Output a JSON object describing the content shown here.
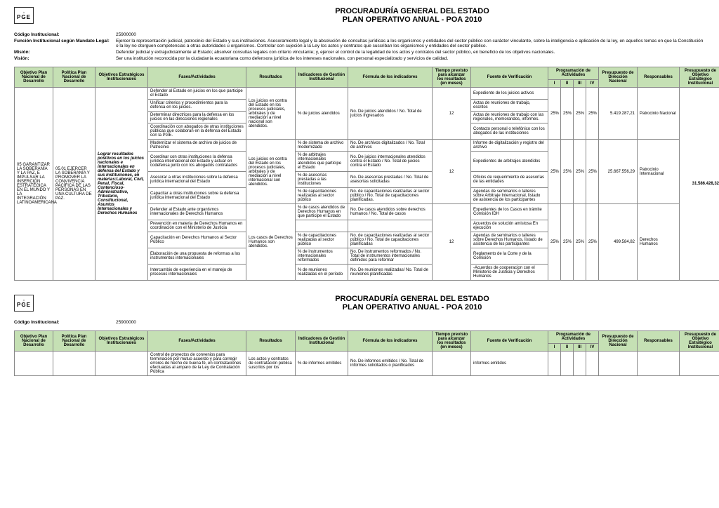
{
  "org": "PROCURADURÍA GENERAL DEL ESTADO",
  "plan": "PLAN OPERATIVO ANUAL - POA 2010",
  "codigo_label": "Código Institucional:",
  "codigo_val": "25900000",
  "meta": [
    {
      "label": "Función Institucional según Mandato Legal:",
      "value": "Ejercer la representación judicial, patrocinio del Estado y sus instituciones. Asesoramiento legal y la absolución de consultas jurídicas a los organismos y entidades del sector público con carácter vinculante, sobre la inteligencia o aplicación de la ley, en aquellos temas en que la Constitución o la ley no otorguen competencias a otras autoridades u organismos. Controlar con sujeción a la Ley los actos y contratos que suscriban los organismos y entidades del sector público."
    },
    {
      "label": "Misión:",
      "value": "Defender judicial y extrajudicialmente al Estado; absolver consultas legales con criterio vinculante; y, ejercer el control de la legalidad de los actos y contratos del sector público, en beneficio de los objetivos nacionales."
    },
    {
      "label": "Visión:",
      "value": "Ser una institución reconocida por la ciudadanía ecuatoriana como defensora jurídica de los intereses nacionales, con personal especializado y servicios de calidad."
    }
  ],
  "headers": {
    "c1": "Objetivo Plan Nacional de Desarrollo",
    "c2": "Política Plan Nacional de Desarrollo",
    "c3": "Objetivos Estratégicos Institucionales",
    "c4": "Fases/Actividades",
    "c5": "Resultados",
    "c6": "Indicadores de Gestión Institucional",
    "c7": "Fórmula de los indicadores",
    "c8": "Tiempo previsto para alcanzar los resultados (en meses)",
    "c9": "Fuente de Verificación",
    "c10": "Programación de Actividades",
    "c10a": "I",
    "c10b": "II",
    "c10c": "III",
    "c10d": "IV",
    "c11": "Presupuesto de Dirección Nacional",
    "c12": "Responsables",
    "c13": "Presupuesto de Objetivo Estratégico Institucional"
  },
  "main": {
    "obj_plan": "05 GARANTIZAR LA SOBERANÍA Y LA PAZ, E IMPULSAR LA INSERCIÓN ESTRATÉGICA EN EL MUNDO Y LA INTEGRACIÓN LATINOAMERICANA",
    "politica": "05.01 EJERCER LA SOBERANÍA Y PROMOVER LA CONVIVENCIA PACÍFICA DE LAS PERSONAS EN UNA CULTURA DE PAZ.",
    "obj_estr": "Lograr resultados positivos en los juicios nacionales e internacionales en defensa del Estado y sus instituciones, en materias:Laboral, Civil, Penal, Fiscal, Contencioso-Administrativo, Tributario, Constitucional, Asuntos Internacionales y Derechos Humanos",
    "total_prese": "31.586.428,32"
  },
  "groups": [
    {
      "resultados": "Los juicios en contra del Estado en los procesos judiciales, arbitrales y de mediación a nivel nacional son atendidos.",
      "indicador": "% de juicios atendidos",
      "formula": "No. De juicios atendidos / No. Total de juicios ingresados",
      "tiempo": "12",
      "q": [
        "25%",
        "25%",
        "25%",
        "25%"
      ],
      "pres": "5.419.287,21",
      "resp": "Patrocinio Nacional",
      "rows": [
        {
          "fase": "Defender al Estado en juicios en los que participe el Estado",
          "fuente": "Expediente de los juicios activos"
        },
        {
          "fase": "Unificar criterios y procedimientos para la defensa en los juicios.",
          "fuente": "Actas de reuniones de trabajo, escritos"
        },
        {
          "fase": "Determinar directrices para la defensa en los juicios en las direcciones regionales",
          "fuente": "Actas de reuniones de trabajo con las regionales, memorandos, informes."
        },
        {
          "fase": "Coordinación con abogados de otras instituciones públicas que colaboran en la defensa del Estado con la PGE.",
          "fuente": "Contacto personal o telefónico con los abogados de las instituciones"
        }
      ]
    },
    {
      "rows": [
        {
          "fase": "Modernizar el sistema de archivo de juicios de Patrocinio",
          "ind": "% de sistema de archivo modernizado",
          "form": "No. De archivos digitalizados / No. Total de archivos",
          "fuente": "Informe de digitalización y registro del archivo"
        }
      ]
    },
    {
      "resultados": "Los juicios en contra del Estado en los procesos judiciales, arbitrales y de mediación a nivel internacional son atendidos.",
      "tiempo": "12",
      "q": [
        "25%",
        "25%",
        "25%",
        "25%"
      ],
      "pres": "25.667.556,29",
      "resp": "Patrocinio Internacional",
      "rows": [
        {
          "fase": "Coordinar con otras instituciones la defensa jurídica internacional del Estado y actuar en codefensa junto con los abogados contratados",
          "ind": "% de arbitrajes internacionales atendidos que participe el Estado",
          "form": "No. De juicios internacionales atendidos contra el Estado / No. Total de juicios contra el Estado",
          "fuente": "Expedientes de arbitrajes atendidos"
        },
        {
          "fase": "Asesorar a otras instituciones sobre la defensa jurídica internacional del Estado",
          "ind": "% de asesorías prestadas a las instituciones",
          "form": "No. De asesorías prestadas / No. Total de asesorías solicitadas",
          "fuente": "Oficios de requerimiento de asesorías de las entidades"
        },
        {
          "fase": "Capacitar a otras instituciones sobre la defensa jurídica internacional del Estado",
          "ind": "% de capacitaciones realizadas al sector público",
          "form": "No. de capacitaciones realizadas al sector público / No. Total de capacitaciones planificadas.",
          "fuente": "Agendas de seminarios o talleres sobre Arbitraje Internacional, listado de asistencia de los participantes"
        }
      ]
    },
    {
      "resultados": "Los casos de Derechos Humanos son atendidos.",
      "tiempo": "12",
      "q": [
        "25%",
        "25%",
        "25%",
        "25%"
      ],
      "pres": "499.584,82",
      "resp": "Derechos Humanos",
      "rows": [
        {
          "fase": "Defender al Estado ante organismos internacionales de Derechos Humanos",
          "ind": "% de casos atendidos de Derechos Humanos en que participe el Estado",
          "form": "No. De casos atendidos sobre derechos humanos / No. Total de casos",
          "fuente": "Expedientes de los Casos en trámite Comisión IDH"
        },
        {
          "fase": "Prevención en materia de Derechos Humanos en coordinación con el Ministerio de Justicia",
          "fuente": "Acuerdos de solución amistosa En ejecución"
        },
        {
          "fase": "Capacitación en Derechos Humanos al Sector Público",
          "ind": "% de capacitaciones realizadas al sector público",
          "form": "No. de capacitaciones realizadas al sector público / No. Total de capacitaciones planificadas",
          "fuente": "Agendas de seminarios o talleres sobre Derechos Humanos, listado de asistencia de los participantes"
        },
        {
          "fase": "Elaboración de una propuesta de reformas a los instrumentos internacionales",
          "ind": "% de instrumentos internacionales reformados",
          "form": "No. De instrumentos reformados / No. Total de instrumentos internacionales definidos para reformar",
          "fuente": "Reglamento de la Corte y de la Comisión"
        },
        {
          "fase": "Intercambio de experiencia en el manejo de procesos internacionales",
          "ind": "% de reuniones realizadas en el período",
          "form": "No. De reuniones realizadas/ No. Total de reuniones planificadas",
          "fuente": "-Acuerdos de cooperacion con el Ministerio de Justicia y Derechos Humanos"
        }
      ]
    }
  ],
  "page2": {
    "row": {
      "fase": "Control de proyectos de convenios para terminación por mutuo acuerdo y para corregir errores de hecho de buena fé, en contrataciones efectuadas al amparo de la Ley de Contratación Pública",
      "res": "Los actos y contratos de contratación pública suscritos por los",
      "ind": "% de informes emitidos",
      "form": "No. De informes emitidos / No. Total de informes solicitados o planificados",
      "fuente": "informes emitidos"
    }
  }
}
